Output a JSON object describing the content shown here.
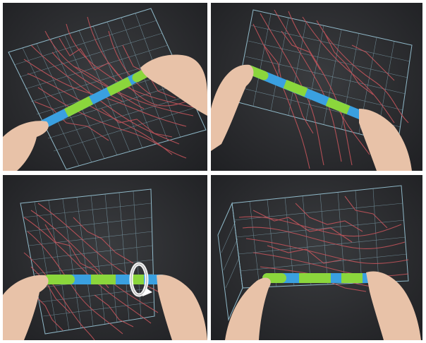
{
  "figure": {
    "panels": [
      {
        "id": "panel-1",
        "tube_orientation": "diagonal-rising-right",
        "rotation_arrow": false
      },
      {
        "id": "panel-2",
        "tube_orientation": "diagonal-falling-right",
        "rotation_arrow": false
      },
      {
        "id": "panel-3",
        "tube_orientation": "horizontal",
        "rotation_arrow": true
      },
      {
        "id": "panel-4",
        "tube_orientation": "horizontal",
        "rotation_arrow": false
      }
    ],
    "colors": {
      "background": "#2a2b2e",
      "box_lines": "#a9dcef",
      "vessels": "#c9555c",
      "tube_green": "#8bd63c",
      "tube_blue": "#3aa0e0",
      "skin": "#e8c2a8"
    },
    "icons": [
      "rotation-arrow-icon"
    ]
  }
}
